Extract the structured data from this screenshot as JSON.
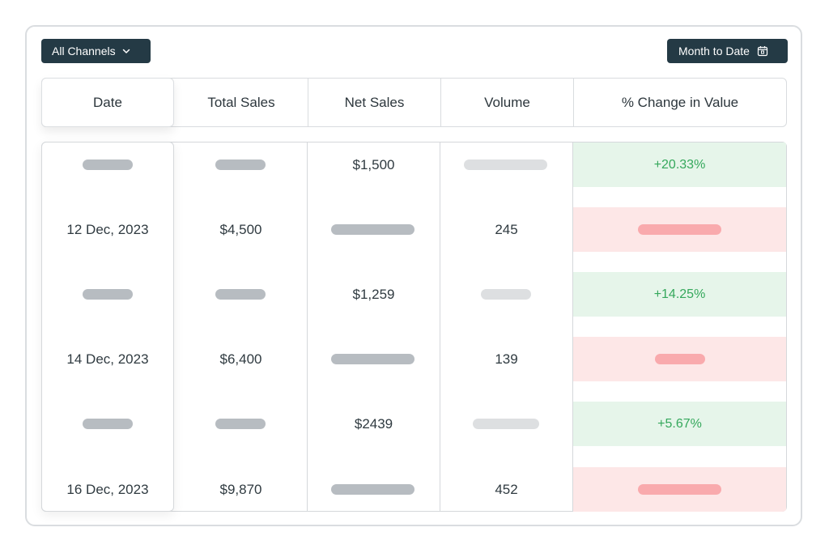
{
  "toolbar": {
    "channels_label": "All Channels",
    "channels_icon": "chevron-down-icon",
    "period_label": "Month to Date",
    "period_icon": "calendar-icon"
  },
  "table": {
    "columns": [
      "Date",
      "Total Sales",
      "Net Sales",
      "Volume",
      "% Change in Value"
    ],
    "rows": [
      {
        "date": "",
        "total_sales": "",
        "net_sales": "$1,500",
        "volume": "",
        "change": "+20.33%",
        "change_status": "positive"
      },
      {
        "date": "12 Dec, 2023",
        "total_sales": "$4,500",
        "net_sales": "",
        "volume": "245",
        "change": "",
        "change_status": "negative"
      },
      {
        "date": "",
        "total_sales": "",
        "net_sales": "$1,259",
        "volume": "",
        "change": "+14.25%",
        "change_status": "positive"
      },
      {
        "date": "14 Dec, 2023",
        "total_sales": "$6,400",
        "net_sales": "",
        "volume": "139",
        "change": "",
        "change_status": "negative"
      },
      {
        "date": "",
        "total_sales": "",
        "net_sales": "$2439",
        "volume": "",
        "change": "+5.67%",
        "change_status": "positive"
      },
      {
        "date": "16 Dec, 2023",
        "total_sales": "$9,870",
        "net_sales": "",
        "volume": "452",
        "change": "",
        "change_status": "negative"
      }
    ]
  },
  "colors": {
    "button_bg": "#243a45",
    "positive_bg": "#e6f5ea",
    "positive_text": "#35a85c",
    "negative_bg": "#fde7e7",
    "skeleton": "#b7bcc1"
  }
}
